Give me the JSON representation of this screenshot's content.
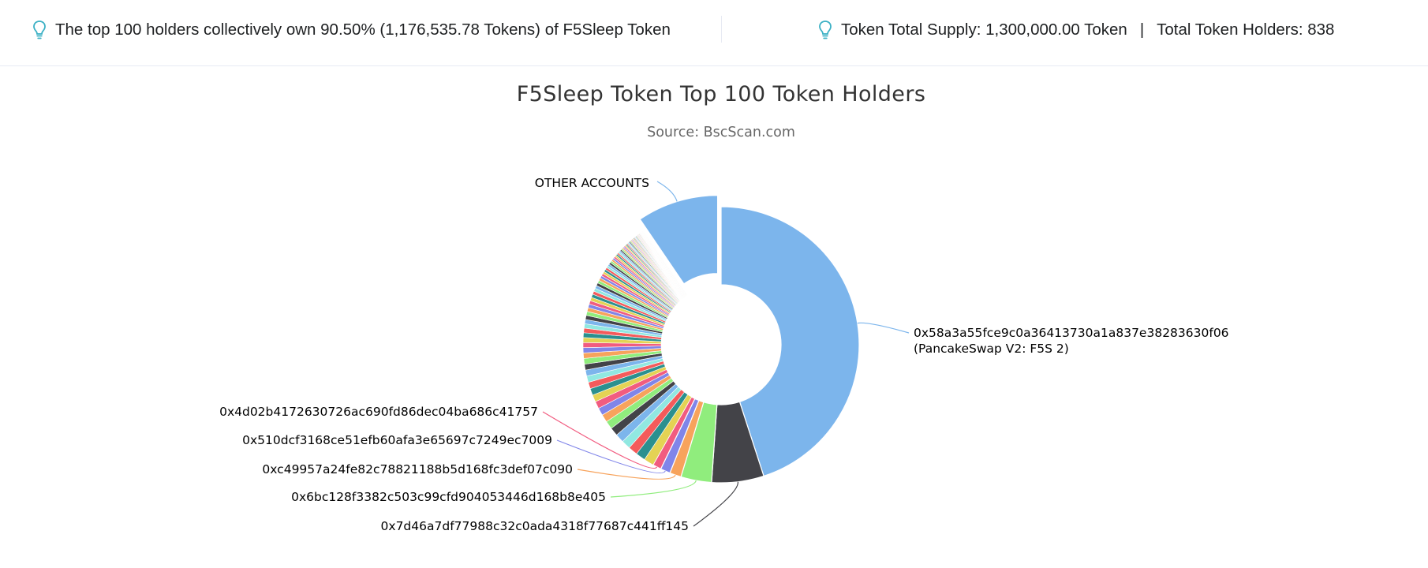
{
  "summary": {
    "top_holders_text": "The top 100 holders collectively own 90.50% (1,176,535.78 Tokens) of F5Sleep Token",
    "total_supply_text": "Token Total Supply: 1,300,000.00 Token",
    "separator": "|",
    "total_holders_text": "Total Token Holders: 838",
    "icon": "lightbulb-icon",
    "icon_color": "#3ab0c4"
  },
  "chart_data": {
    "type": "pie",
    "variant": "donut",
    "title": "F5Sleep Token Top 100 Token Holders",
    "subtitle": "Source: BscScan.com",
    "unit_percent_of_supply": true,
    "labeled_slices": [
      {
        "label": "0x58a3a55fce9c0a36413730a1a837e38283630f06",
        "label_line2": "(PancakeSwap V2: F5S 2)",
        "value": 45.0,
        "color": "#7cb5ec"
      },
      {
        "label": "0x7d46a7df77988c32c0ada4318f77687c441ff145",
        "value": 6.1,
        "color": "#434348"
      },
      {
        "label": "0x6bc128f3382c503c99cfd904053446d168b8e405",
        "value": 3.6,
        "color": "#90ed7d"
      },
      {
        "label": "0xc49957a24fe82c78821188b5d168fc3def07c090",
        "value": 1.35,
        "color": "#f7a35c"
      },
      {
        "label": "0x510dcf3168ce51efb60afa3e65697c7249ec7009",
        "value": 1.15,
        "color": "#8085e9"
      },
      {
        "label": "0x4d02b4172630726ac690fd86dec04ba686c41757",
        "value": 1.0,
        "color": "#f15c80"
      }
    ],
    "other_top100_holders": {
      "count": 94,
      "total_value": 32.3,
      "colors": [
        "#e4d354",
        "#2b908f",
        "#f45b5b",
        "#91e8e1",
        "#7cb5ec",
        "#434348",
        "#90ed7d",
        "#f7a35c",
        "#8085e9",
        "#f15c80"
      ]
    },
    "other_accounts": {
      "label": "OTHER ACCOUNTS",
      "value": 9.5,
      "color": "#7cb5ec"
    }
  }
}
